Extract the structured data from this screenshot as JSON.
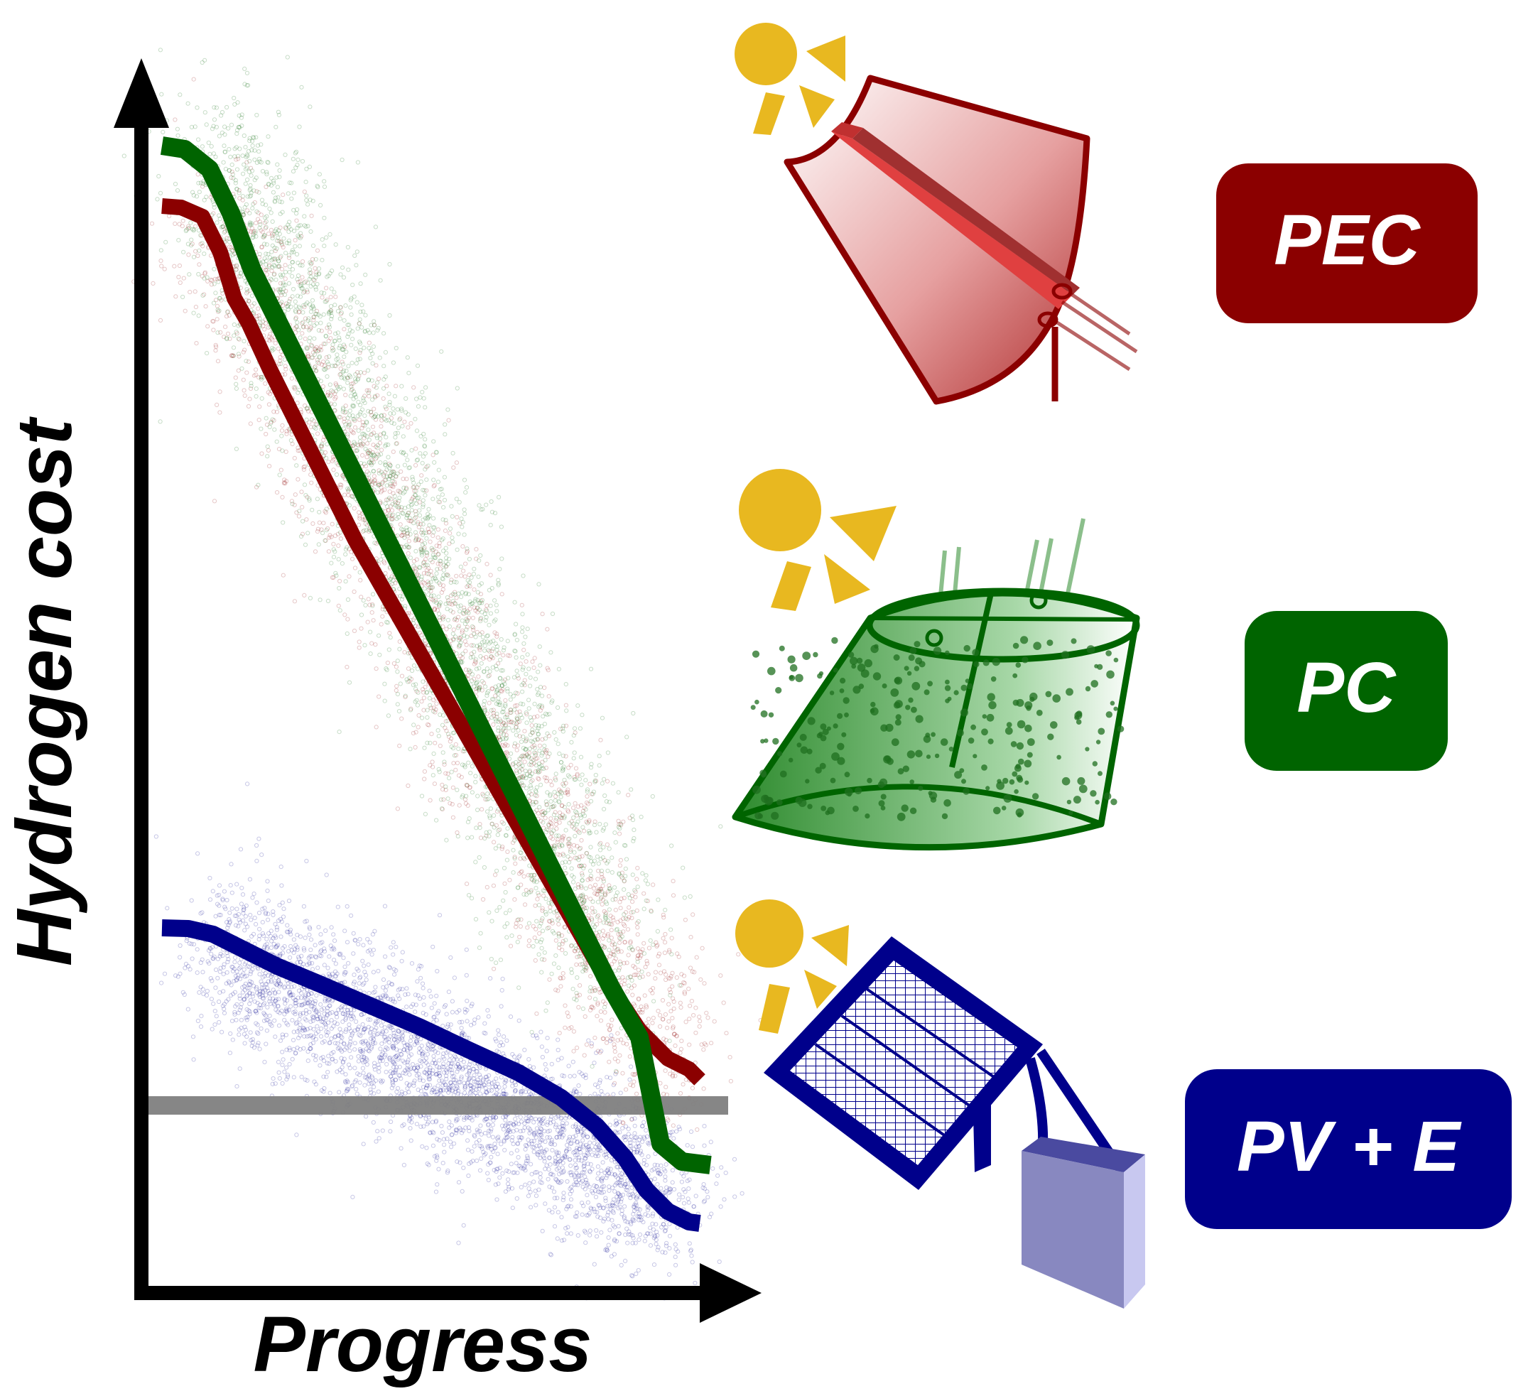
{
  "axes": {
    "x_label": "Progress",
    "y_label": "Hydrogen cost"
  },
  "technologies": [
    {
      "key": "pec",
      "label": "PEC",
      "color": "#8b0000"
    },
    {
      "key": "pc",
      "label": "PC",
      "color": "#006400"
    },
    {
      "key": "pve",
      "label": "PV + E",
      "color": "#00008b"
    }
  ],
  "colors": {
    "sun": "#e8b820",
    "target_line": "#808080",
    "axis": "#000000"
  },
  "icons": [
    "sun-icon",
    "pec-device-icon",
    "pc-reactor-icon",
    "solar-panel-icon",
    "electrolyzer-icon"
  ]
}
